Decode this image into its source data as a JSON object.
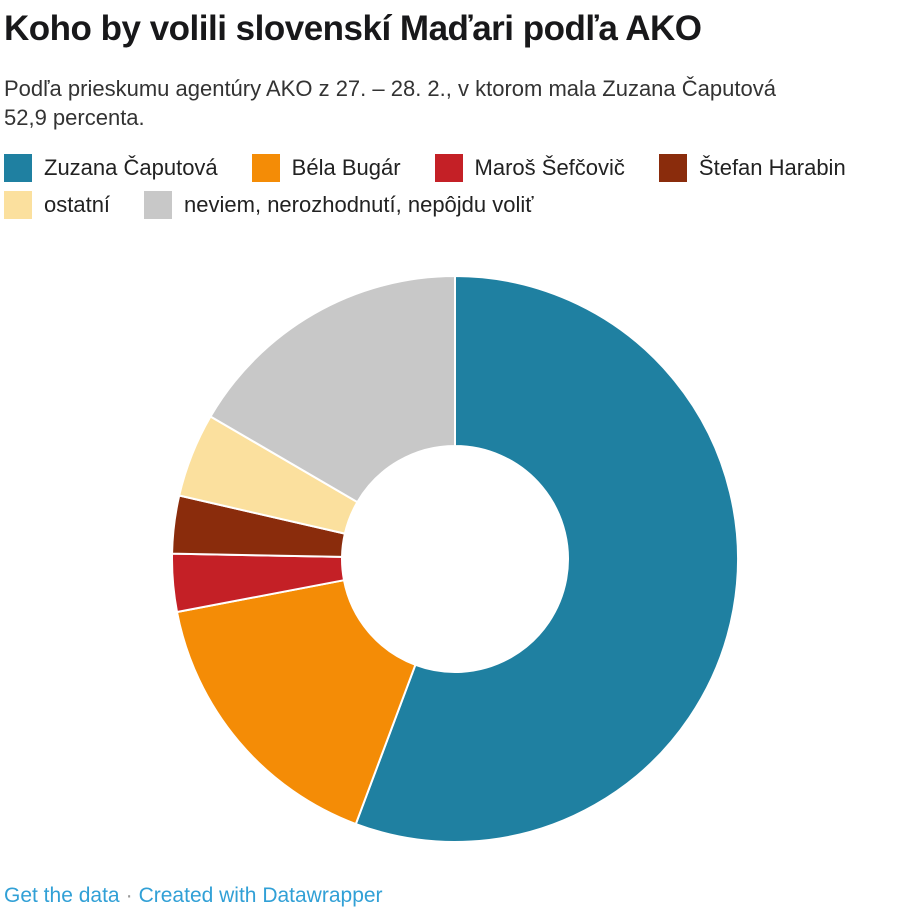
{
  "header": {
    "title": "Koho by volili slovenskí Maďari podľa AKO",
    "subtitle": "Podľa prieskumu agentúry AKO z 27. – 28. 2., v ktorom mala Zuzana Čaputová 52,9 percenta."
  },
  "legend": {
    "items": [
      {
        "label": "Zuzana Čaputová",
        "color": "#1f80a1"
      },
      {
        "label": "Béla Bugár",
        "color": "#f48c06"
      },
      {
        "label": "Maroš Šefčovič",
        "color": "#c42026"
      },
      {
        "label": "Štefan Harabin",
        "color": "#8a2c0c"
      },
      {
        "label": "ostatní",
        "color": "#fbe09e"
      },
      {
        "label": "neviem, nerozhodnutí, nepôjdu voliť",
        "color": "#c8c8c8"
      }
    ]
  },
  "chart_data": {
    "type": "pie",
    "variant": "donut",
    "title": "Koho by volili slovenskí Maďari podľa AKO",
    "categories": [
      "Zuzana Čaputová",
      "Béla Bugár",
      "Maroš Šefčovič",
      "Štefan Harabin",
      "ostatní",
      "neviem, nerozhodnutí, nepôjdu voliť"
    ],
    "values": [
      55.7,
      16.3,
      3.3,
      3.3,
      4.8,
      16.6
    ],
    "unit": "%",
    "colors": [
      "#1f80a1",
      "#f48c06",
      "#c42026",
      "#8a2c0c",
      "#fbe09e",
      "#c8c8c8"
    ],
    "start_angle_deg": 0,
    "direction": "clockwise",
    "inner_radius_ratio": 0.4,
    "slice_separator_color": "#ffffff",
    "legend_position": "top"
  },
  "footer": {
    "links": [
      {
        "label": "Get the data"
      },
      {
        "label": "Created with Datawrapper"
      }
    ],
    "separator": "·",
    "link_color": "#31a0d6"
  }
}
